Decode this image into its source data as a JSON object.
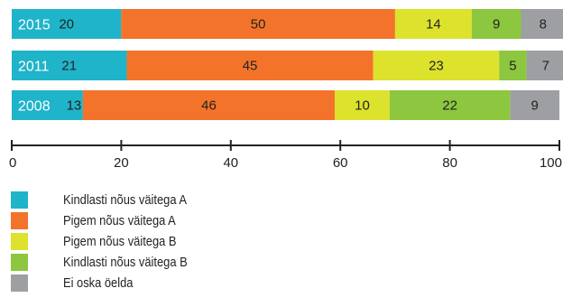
{
  "chart_data": {
    "type": "bar",
    "orientation": "horizontal",
    "stacked": true,
    "categories": [
      "2015",
      "2011",
      "2008"
    ],
    "series": [
      {
        "name": "Kindlasti nõus väitega A",
        "color": "#1fb4c9",
        "values": [
          20,
          21,
          13
        ]
      },
      {
        "name": "Pigem nõus väitega A",
        "color": "#f4732a",
        "values": [
          50,
          45,
          46
        ]
      },
      {
        "name": "Pigem nõus väitega B",
        "color": "#dde22c",
        "values": [
          14,
          23,
          10
        ]
      },
      {
        "name": "Kindlasti nõus väitega B",
        "color": "#8dc63f",
        "values": [
          9,
          5,
          22
        ]
      },
      {
        "name": "Ei oska öelda",
        "color": "#9d9fa2",
        "values": [
          8,
          7,
          9
        ]
      }
    ],
    "xlim": [
      0,
      100
    ],
    "xticks": [
      "0",
      "20",
      "40",
      "60",
      "80",
      "100"
    ],
    "grid": false,
    "legend_position": "bottom-left"
  }
}
